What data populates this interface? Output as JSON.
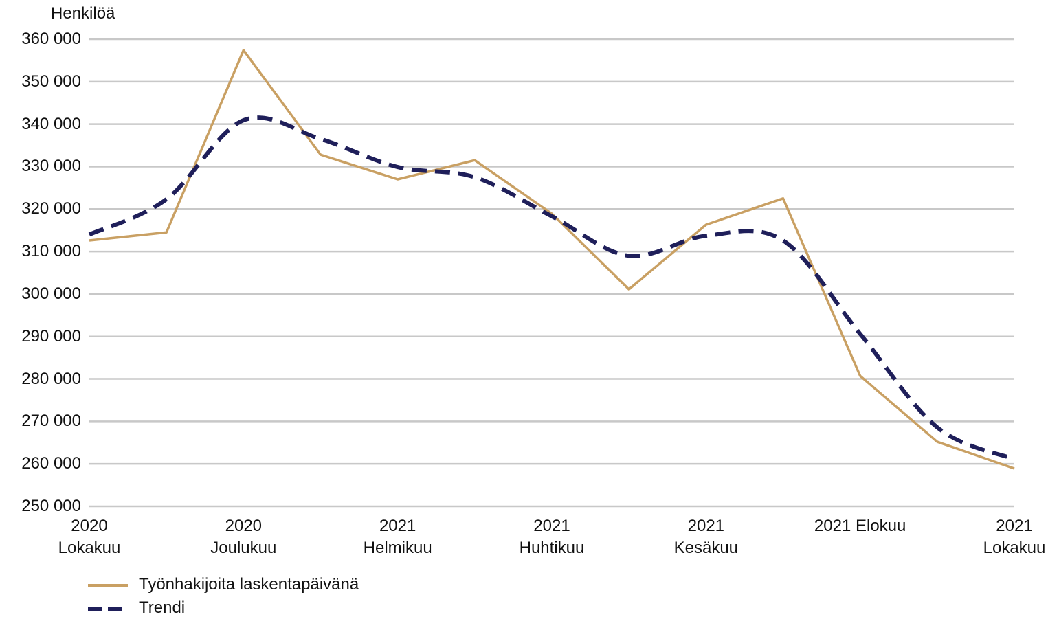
{
  "chart_data": {
    "type": "line",
    "y_label": "Henkilöä",
    "categories": [
      "2020\nLokakuu",
      null,
      "2020\nJoulukuu",
      null,
      "2021\nHelmikuu",
      null,
      "2021\nHuhtikuu",
      null,
      "2021\nKesäkuu",
      null,
      "2021 Elokuu",
      null,
      "2021\nLokakuu"
    ],
    "series": [
      {
        "name": "Työnhakijoita laskentapäivänä",
        "color": "#c9a063",
        "style": "solid",
        "values": [
          312600,
          314500,
          357400,
          332800,
          327000,
          331500,
          318900,
          301100,
          316300,
          322500,
          280700,
          265200,
          258900
        ]
      },
      {
        "name": "Trendi",
        "color": "#1f1f5a",
        "style": "dashed",
        "values": [
          314000,
          322300,
          340900,
          336500,
          329900,
          327500,
          318300,
          309000,
          313700,
          312600,
          290600,
          268600,
          261100
        ]
      }
    ],
    "ylim": [
      250000,
      360000
    ],
    "yticks": [
      {
        "value": 250000,
        "label": "250 000"
      },
      {
        "value": 260000,
        "label": "260 000"
      },
      {
        "value": 270000,
        "label": "270 000"
      },
      {
        "value": 280000,
        "label": "280 000"
      },
      {
        "value": 290000,
        "label": "290 000"
      },
      {
        "value": 300000,
        "label": "300 000"
      },
      {
        "value": 310000,
        "label": "310 000"
      },
      {
        "value": 320000,
        "label": "320 000"
      },
      {
        "value": 330000,
        "label": "330 000"
      },
      {
        "value": 340000,
        "label": "340 000"
      },
      {
        "value": 350000,
        "label": "350 000"
      },
      {
        "value": 360000,
        "label": "360 000"
      }
    ],
    "grid": true,
    "legend": "bottom-left"
  }
}
